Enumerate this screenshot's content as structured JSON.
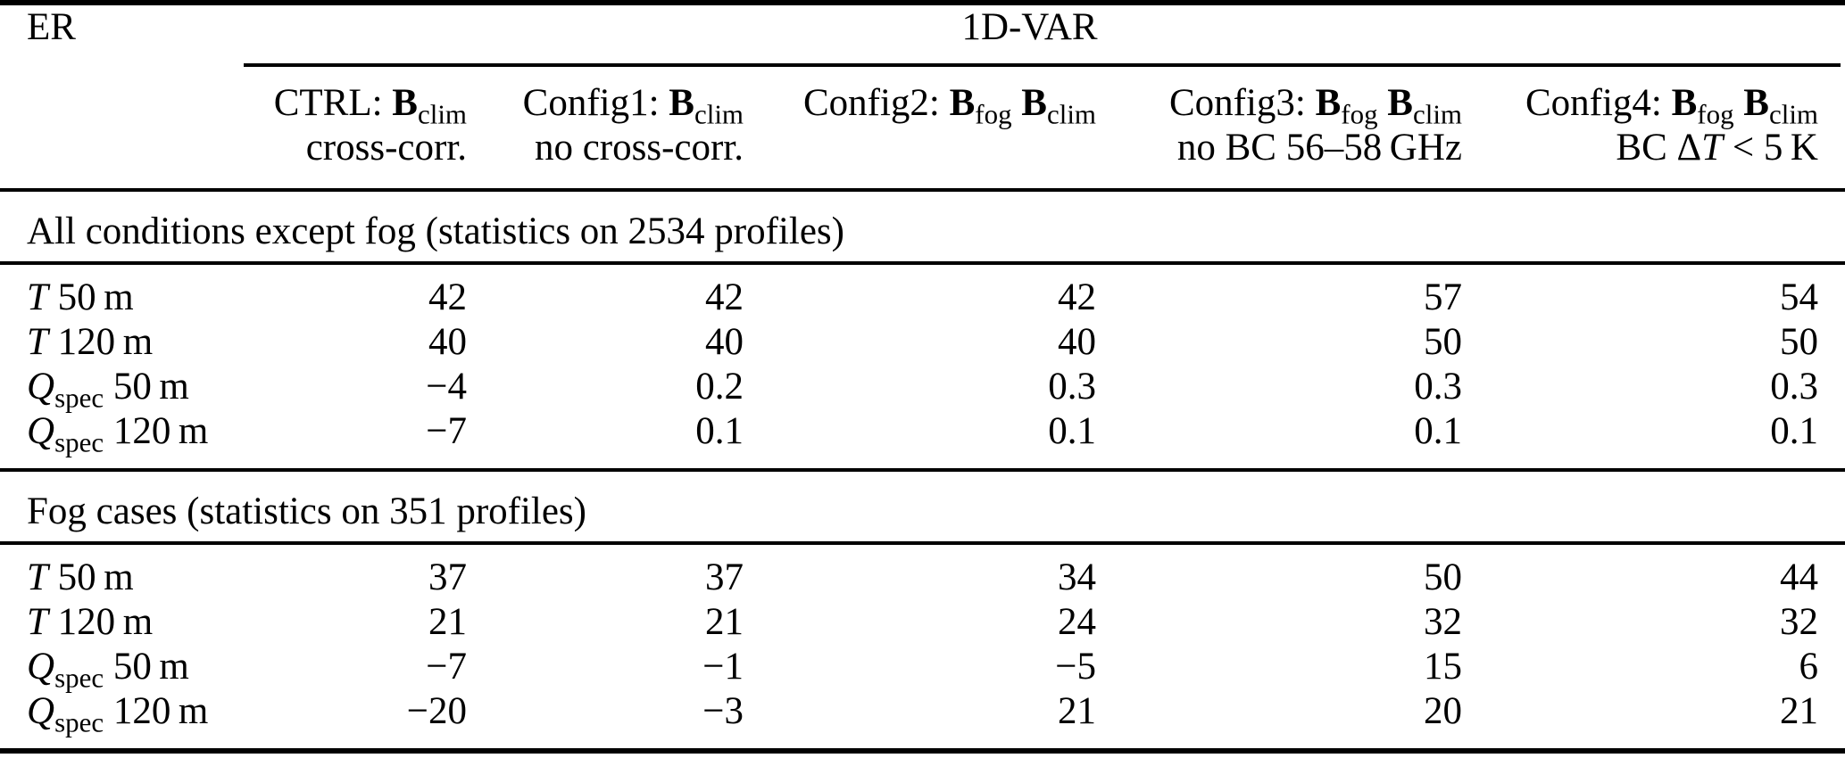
{
  "table": {
    "corner_label": "ER",
    "group_header": "1D-VAR",
    "columns": [
      {
        "id": "ctrl",
        "title": [
          {
            "t": "CTRL: "
          },
          {
            "t": "B",
            "s": "b"
          },
          {
            "t": "clim",
            "s": "sub"
          }
        ],
        "note": [
          {
            "t": "cross-corr."
          }
        ]
      },
      {
        "id": "config1",
        "title": [
          {
            "t": "Config1: "
          },
          {
            "t": "B",
            "s": "b"
          },
          {
            "t": "clim",
            "s": "sub"
          }
        ],
        "note": [
          {
            "t": "no cross-corr."
          }
        ]
      },
      {
        "id": "config2",
        "title": [
          {
            "t": "Config2: "
          },
          {
            "t": "B",
            "s": "b"
          },
          {
            "t": "fog",
            "s": "sub"
          },
          {
            "t": " "
          },
          {
            "t": "B",
            "s": "b"
          },
          {
            "t": "clim",
            "s": "sub"
          }
        ],
        "note": []
      },
      {
        "id": "config3",
        "title": [
          {
            "t": "Config3: "
          },
          {
            "t": "B",
            "s": "b"
          },
          {
            "t": "fog",
            "s": "sub"
          },
          {
            "t": " "
          },
          {
            "t": "B",
            "s": "b"
          },
          {
            "t": "clim",
            "s": "sub"
          }
        ],
        "note": [
          {
            "t": "no BC 56–58 GHz"
          }
        ]
      },
      {
        "id": "config4",
        "title": [
          {
            "t": "Config4: "
          },
          {
            "t": "B",
            "s": "b"
          },
          {
            "t": "fog",
            "s": "sub"
          },
          {
            "t": " "
          },
          {
            "t": "B",
            "s": "b"
          },
          {
            "t": "clim",
            "s": "sub"
          }
        ],
        "note": [
          {
            "t": "BC Δ"
          },
          {
            "t": "T",
            "s": "i"
          },
          {
            "t": " < 5 K"
          }
        ]
      }
    ],
    "sections": [
      {
        "title": "All conditions except fog (statistics on 2534 profiles)",
        "rows": [
          {
            "label": [
              {
                "t": "T",
                "s": "i"
              },
              {
                "t": " 50 m"
              }
            ],
            "values": [
              "42",
              "42",
              "42",
              "57",
              "54"
            ]
          },
          {
            "label": [
              {
                "t": "T",
                "s": "i"
              },
              {
                "t": " 120 m"
              }
            ],
            "values": [
              "40",
              "40",
              "40",
              "50",
              "50"
            ]
          },
          {
            "label": [
              {
                "t": "Q",
                "s": "i"
              },
              {
                "t": "spec",
                "s": "sub"
              },
              {
                "t": " 50 m"
              }
            ],
            "values": [
              "−4",
              "0.2",
              "0.3",
              "0.3",
              "0.3"
            ]
          },
          {
            "label": [
              {
                "t": "Q",
                "s": "i"
              },
              {
                "t": "spec",
                "s": "sub"
              },
              {
                "t": " 120 m"
              }
            ],
            "values": [
              "−7",
              "0.1",
              "0.1",
              "0.1",
              "0.1"
            ]
          }
        ]
      },
      {
        "title": "Fog cases (statistics on 351 profiles)",
        "rows": [
          {
            "label": [
              {
                "t": "T",
                "s": "i"
              },
              {
                "t": " 50 m"
              }
            ],
            "values": [
              "37",
              "37",
              "34",
              "50",
              "44"
            ]
          },
          {
            "label": [
              {
                "t": "T",
                "s": "i"
              },
              {
                "t": " 120 m"
              }
            ],
            "values": [
              "21",
              "21",
              "24",
              "32",
              "32"
            ]
          },
          {
            "label": [
              {
                "t": "Q",
                "s": "i"
              },
              {
                "t": "spec",
                "s": "sub"
              },
              {
                "t": " 50 m"
              }
            ],
            "values": [
              "−7",
              "−1",
              "−5",
              "15",
              "6"
            ]
          },
          {
            "label": [
              {
                "t": "Q",
                "s": "i"
              },
              {
                "t": "spec",
                "s": "sub"
              },
              {
                "t": " 120 m"
              }
            ],
            "values": [
              "−20",
              "−3",
              "21",
              "20",
              "21"
            ]
          }
        ]
      }
    ]
  }
}
